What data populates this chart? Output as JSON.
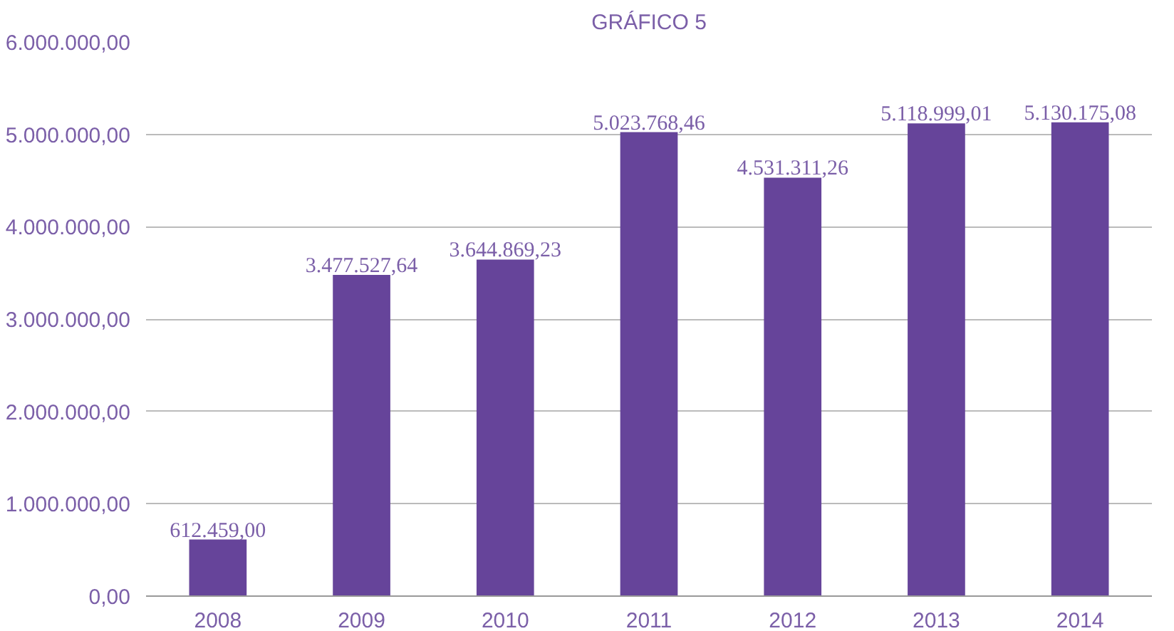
{
  "chart_data": {
    "type": "bar",
    "title": "GRÁFICO 5",
    "categories": [
      "2008",
      "2009",
      "2010",
      "2011",
      "2012",
      "2013",
      "2014"
    ],
    "values": [
      612459.0,
      3477527.64,
      3644869.23,
      5023768.46,
      4531311.26,
      5118999.01,
      5130175.08
    ],
    "value_labels": [
      "612.459,00",
      "3.477.527,64",
      "3.644.869,23",
      "5.023.768,46",
      "4.531.311,26",
      "5.118.999,01",
      "5.130.175,08"
    ],
    "color": "#66449a",
    "ylim": [
      0,
      6000000
    ],
    "yticks": [
      {
        "value": 0,
        "label": "0,00"
      },
      {
        "value": 1000000,
        "label": "1.000.000,00"
      },
      {
        "value": 2000000,
        "label": "2.000.000,00"
      },
      {
        "value": 3000000,
        "label": "3.000.000,00"
      },
      {
        "value": 4000000,
        "label": "4.000.000,00"
      },
      {
        "value": 5000000,
        "label": "5.000.000,00"
      },
      {
        "value": 6000000,
        "label": "6.000.000,00"
      }
    ],
    "grid": "y"
  }
}
